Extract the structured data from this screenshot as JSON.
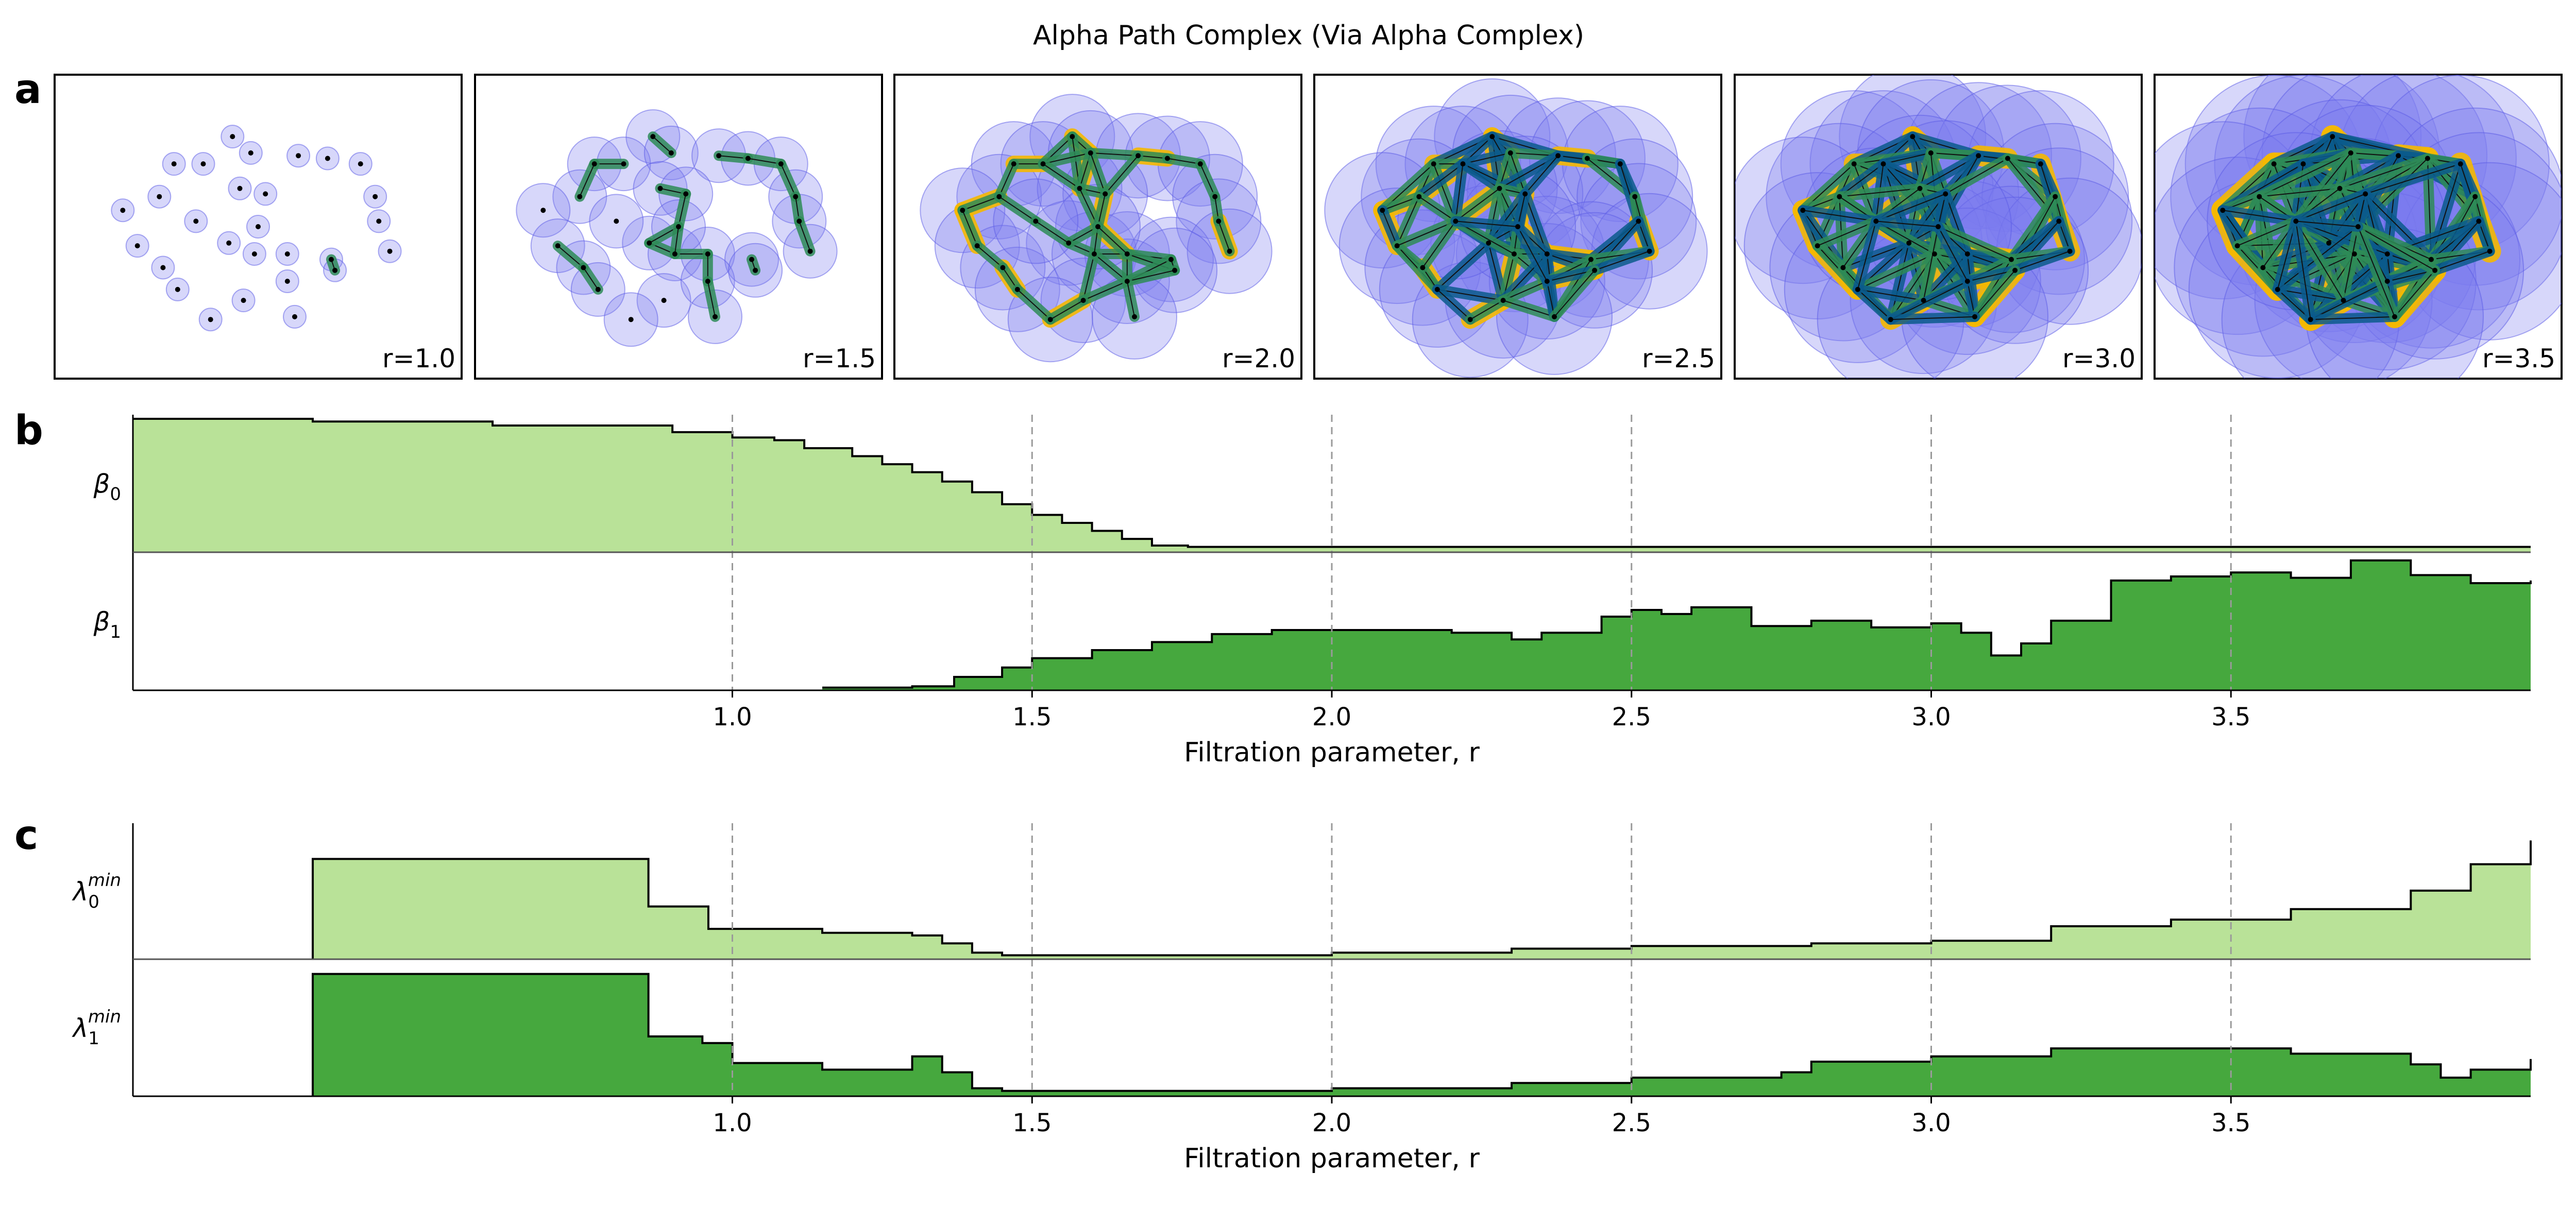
{
  "title": "Alpha Path Complex (Via Alpha Complex)",
  "panel_labels": {
    "a": "a",
    "b": "b",
    "c": "c"
  },
  "colors": {
    "vertex_disc": "#7b7bf0",
    "edge_green": "#2e8b57",
    "edge_blue": "#0b5a8c",
    "triangle_yellow": "#f5b800",
    "light_green": "#b9e298",
    "dark_green": "#46a83e",
    "grid": "#9a9a9a"
  },
  "snapshots": [
    {
      "label": "r=1.0",
      "r": 1.0
    },
    {
      "label": "r=1.5",
      "r": 1.5
    },
    {
      "label": "r=2.0",
      "r": 2.0
    },
    {
      "label": "r=2.5",
      "r": 2.5
    },
    {
      "label": "r=3.0",
      "r": 3.0
    },
    {
      "label": "r=3.5",
      "r": 3.5
    }
  ],
  "chart_data": [
    {
      "type": "area",
      "panel": "b",
      "xlabel": "Filtration parameter, r",
      "xlim": [
        0.0,
        4.0
      ],
      "xticks": [
        "1.0",
        "1.5",
        "2.0",
        "2.5",
        "3.0",
        "3.5"
      ],
      "grid": "vertical dashed at ticks",
      "series": [
        {
          "name": "β0",
          "label_main": "β",
          "label_sub": "0",
          "x": [
            0.0,
            0.3,
            0.6,
            0.9,
            1.0,
            1.07,
            1.12,
            1.2,
            1.25,
            1.3,
            1.35,
            1.4,
            1.45,
            1.5,
            1.55,
            1.6,
            1.65,
            1.7,
            1.76,
            2.0,
            3.0,
            4.0
          ],
          "values": [
            1.0,
            0.98,
            0.95,
            0.9,
            0.86,
            0.84,
            0.78,
            0.72,
            0.66,
            0.6,
            0.53,
            0.45,
            0.36,
            0.28,
            0.22,
            0.16,
            0.1,
            0.05,
            0.04,
            0.04,
            0.04,
            0.04
          ],
          "ylim": [
            0,
            1
          ]
        },
        {
          "name": "β1",
          "label_main": "β",
          "label_sub": "1",
          "x": [
            1.15,
            1.3,
            1.37,
            1.45,
            1.5,
            1.6,
            1.7,
            1.8,
            1.9,
            2.0,
            2.1,
            2.2,
            2.3,
            2.35,
            2.45,
            2.5,
            2.55,
            2.6,
            2.7,
            2.8,
            2.9,
            3.0,
            3.05,
            3.1,
            3.15,
            3.2,
            3.3,
            3.4,
            3.5,
            3.6,
            3.7,
            3.8,
            3.9,
            4.0
          ],
          "values": [
            0.02,
            0.03,
            0.1,
            0.17,
            0.24,
            0.3,
            0.36,
            0.42,
            0.45,
            0.45,
            0.45,
            0.43,
            0.38,
            0.43,
            0.55,
            0.6,
            0.57,
            0.62,
            0.48,
            0.52,
            0.47,
            0.5,
            0.43,
            0.26,
            0.35,
            0.52,
            0.82,
            0.85,
            0.88,
            0.84,
            0.97,
            0.86,
            0.8,
            0.82
          ],
          "ylim": [
            0,
            1
          ]
        }
      ]
    },
    {
      "type": "area",
      "panel": "c",
      "xlabel": "Filtration parameter, r",
      "xlim": [
        0.0,
        4.0
      ],
      "xticks": [
        "1.0",
        "1.5",
        "2.0",
        "2.5",
        "3.0",
        "3.5"
      ],
      "grid": "vertical dashed at ticks",
      "series": [
        {
          "name": "λ0 min",
          "label_main": "λ",
          "label_sub": "0",
          "label_sup": "min",
          "x": [
            0.3,
            0.3,
            0.85,
            0.86,
            0.95,
            0.96,
            1.15,
            1.3,
            1.35,
            1.4,
            1.45,
            1.55,
            1.7,
            2.0,
            2.3,
            2.5,
            2.8,
            3.0,
            3.2,
            3.4,
            3.6,
            3.8,
            3.9,
            4.0
          ],
          "values": [
            0.0,
            0.76,
            0.76,
            0.4,
            0.4,
            0.23,
            0.2,
            0.18,
            0.12,
            0.05,
            0.03,
            0.03,
            0.03,
            0.05,
            0.08,
            0.1,
            0.12,
            0.14,
            0.25,
            0.3,
            0.38,
            0.52,
            0.72,
            0.9
          ],
          "ylim": [
            0,
            1
          ]
        },
        {
          "name": "λ1 min",
          "label_main": "λ",
          "label_sub": "1",
          "label_sup": "min",
          "x": [
            0.3,
            0.3,
            0.85,
            0.86,
            0.95,
            1.0,
            1.15,
            1.3,
            1.35,
            1.4,
            1.45,
            1.7,
            2.0,
            2.3,
            2.5,
            2.75,
            2.8,
            3.0,
            3.2,
            3.4,
            3.6,
            3.8,
            3.85,
            3.9,
            4.0
          ],
          "values": [
            0.0,
            0.92,
            0.92,
            0.45,
            0.4,
            0.25,
            0.2,
            0.3,
            0.18,
            0.06,
            0.04,
            0.04,
            0.06,
            0.1,
            0.14,
            0.18,
            0.26,
            0.3,
            0.36,
            0.36,
            0.32,
            0.24,
            0.14,
            0.2,
            0.28
          ],
          "ylim": [
            0,
            1
          ]
        }
      ]
    }
  ]
}
